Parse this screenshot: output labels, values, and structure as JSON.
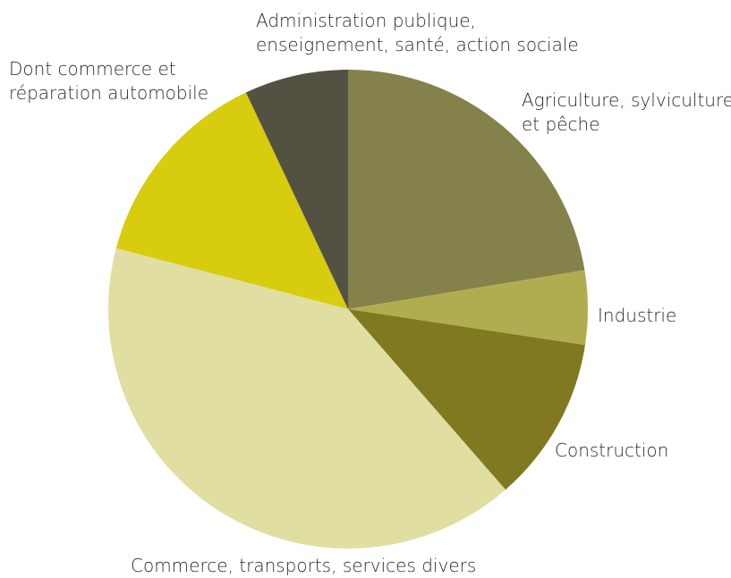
{
  "chart_data": {
    "type": "pie",
    "title": "",
    "start_angle_deg": 0,
    "direction": "clockwise",
    "slices": [
      {
        "label_lines": [
          "Agriculture, sylviculture",
          "et pêche"
        ],
        "value": 22.4,
        "color": "#85814a"
      },
      {
        "label_lines": [
          "Industrie"
        ],
        "value": 5.0,
        "color": "#b0ad50"
      },
      {
        "label_lines": [
          "Construction"
        ],
        "value": 11.2,
        "color": "#80791f"
      },
      {
        "label_lines": [
          "Commerce, transports, services divers"
        ],
        "value": 40.5,
        "color": "#e0dea1"
      },
      {
        "label_lines": [
          "Dont commerce et",
          "réparation automobile"
        ],
        "value": 13.9,
        "color": "#d8cc0e"
      },
      {
        "label_lines": [
          "Administration publique,",
          "enseignement, santé, action sociale"
        ],
        "value": 7.0,
        "color": "#535242"
      }
    ]
  }
}
